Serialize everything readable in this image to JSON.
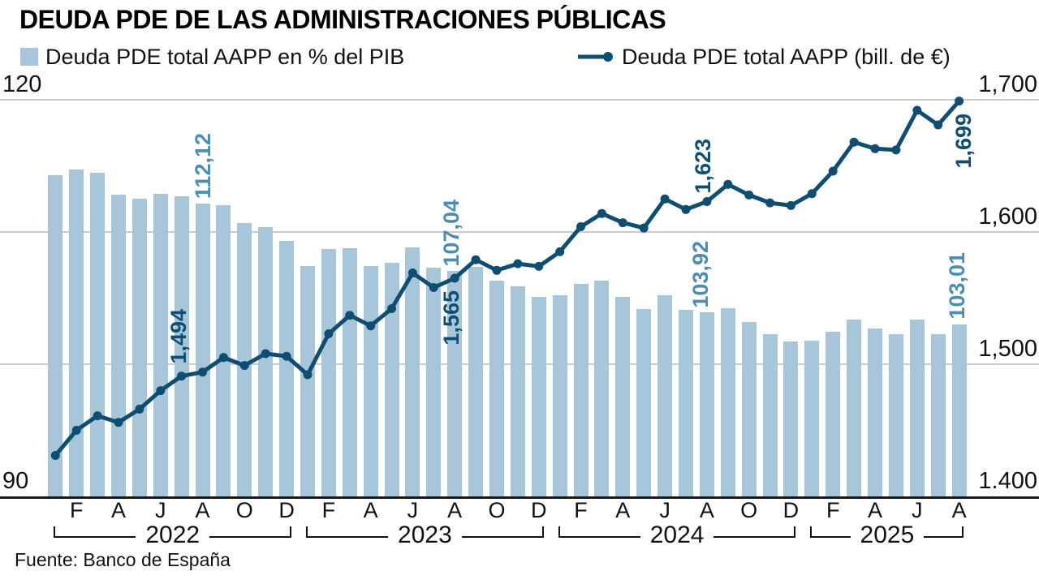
{
  "title": "DEUDA PDE DE LAS ADMINISTRACIONES PÚBLICAS",
  "legend": {
    "bars_label": "Deuda PDE total AAPP en % del PIB",
    "line_label": "Deuda PDE total AAPP  (bill. de €)"
  },
  "source": "Fuente: Banco de España",
  "colors": {
    "bar": "#a7c6da",
    "line": "#0f4e71",
    "bar_label": "#4d8cb3",
    "line_label": "#0f4e71"
  },
  "chart_data": {
    "type": "combo-bar-line",
    "x_range": "Enero 2022 - Agosto 2025",
    "left_axis": {
      "unit": "% del PIB",
      "tick_values": [
        120,
        110,
        100,
        90
      ],
      "labels_shown": [
        "120",
        "90"
      ]
    },
    "right_axis": {
      "unit": "bill. de €",
      "tick_values": [
        1700,
        1600,
        1500,
        1400
      ],
      "labels": [
        "1,700",
        "1,600",
        "1,500",
        "1.400"
      ]
    },
    "years": [
      {
        "label": "2022",
        "n_months": 12,
        "tick_labels": [
          "F",
          "A",
          "J",
          "A",
          "O",
          "D"
        ]
      },
      {
        "label": "2023",
        "n_months": 12,
        "tick_labels": [
          "F",
          "A",
          "J",
          "A",
          "O",
          "D"
        ]
      },
      {
        "label": "2024",
        "n_months": 12,
        "tick_labels": [
          "F",
          "A",
          "J",
          "A",
          "O",
          "D"
        ]
      },
      {
        "label": "2025",
        "n_months": 8,
        "tick_labels": [
          "F",
          "A",
          "J",
          "A"
        ]
      }
    ],
    "series": [
      {
        "name": "Deuda PDE total AAPP en % del PIB",
        "type": "bar",
        "values": [
          114.3,
          114.7,
          114.5,
          112.8,
          112.5,
          112.9,
          112.7,
          112.12,
          112.0,
          110.7,
          110.4,
          109.3,
          107.4,
          108.7,
          108.8,
          107.4,
          107.7,
          108.85,
          107.3,
          107.04,
          107.35,
          106.3,
          105.9,
          105.1,
          105.2,
          106.1,
          106.3,
          105.1,
          104.2,
          105.2,
          104.1,
          103.92,
          104.25,
          103.2,
          102.3,
          101.7,
          101.8,
          102.45,
          103.35,
          102.7,
          102.25,
          103.4,
          102.3,
          103.01
        ]
      },
      {
        "name": "Deuda PDE total AAPP (bill. de €)",
        "type": "line",
        "values": [
          1431,
          1450,
          1461,
          1456,
          1466,
          1480,
          1491,
          1494,
          1505,
          1499,
          1508,
          1506,
          1492,
          1523,
          1537,
          1529,
          1542,
          1569,
          1558,
          1565,
          1579,
          1571,
          1576,
          1574,
          1585,
          1604,
          1614,
          1607,
          1603,
          1625,
          1617,
          1623,
          1636,
          1628,
          1622,
          1620,
          1629,
          1646,
          1668,
          1663,
          1662,
          1692,
          1681,
          1699
        ]
      }
    ],
    "annotations": [
      {
        "text": "112,12",
        "series": "bar",
        "month_index": 7,
        "placement": "above-bar",
        "dx": -1
      },
      {
        "text": "1,494",
        "series": "line",
        "month_index": 7,
        "placement": "above-dot",
        "dx": -31
      },
      {
        "text": "107,04",
        "series": "bar",
        "month_index": 19,
        "placement": "above-bar",
        "dx": -5
      },
      {
        "text": "1,565",
        "series": "line",
        "month_index": 19,
        "placement": "below-dot",
        "dx": -5
      },
      {
        "text": "103,92",
        "series": "bar",
        "month_index": 31,
        "placement": "above-bar",
        "dx": -9
      },
      {
        "text": "1,623",
        "series": "line",
        "month_index": 31,
        "placement": "above-dot",
        "dx": -6
      },
      {
        "text": "103,01",
        "series": "bar",
        "month_index": 43,
        "placement": "above-bar",
        "dx": -4
      },
      {
        "text": "1,699",
        "series": "line",
        "month_index": 43,
        "placement": "below-dot",
        "dx": 4
      }
    ]
  }
}
